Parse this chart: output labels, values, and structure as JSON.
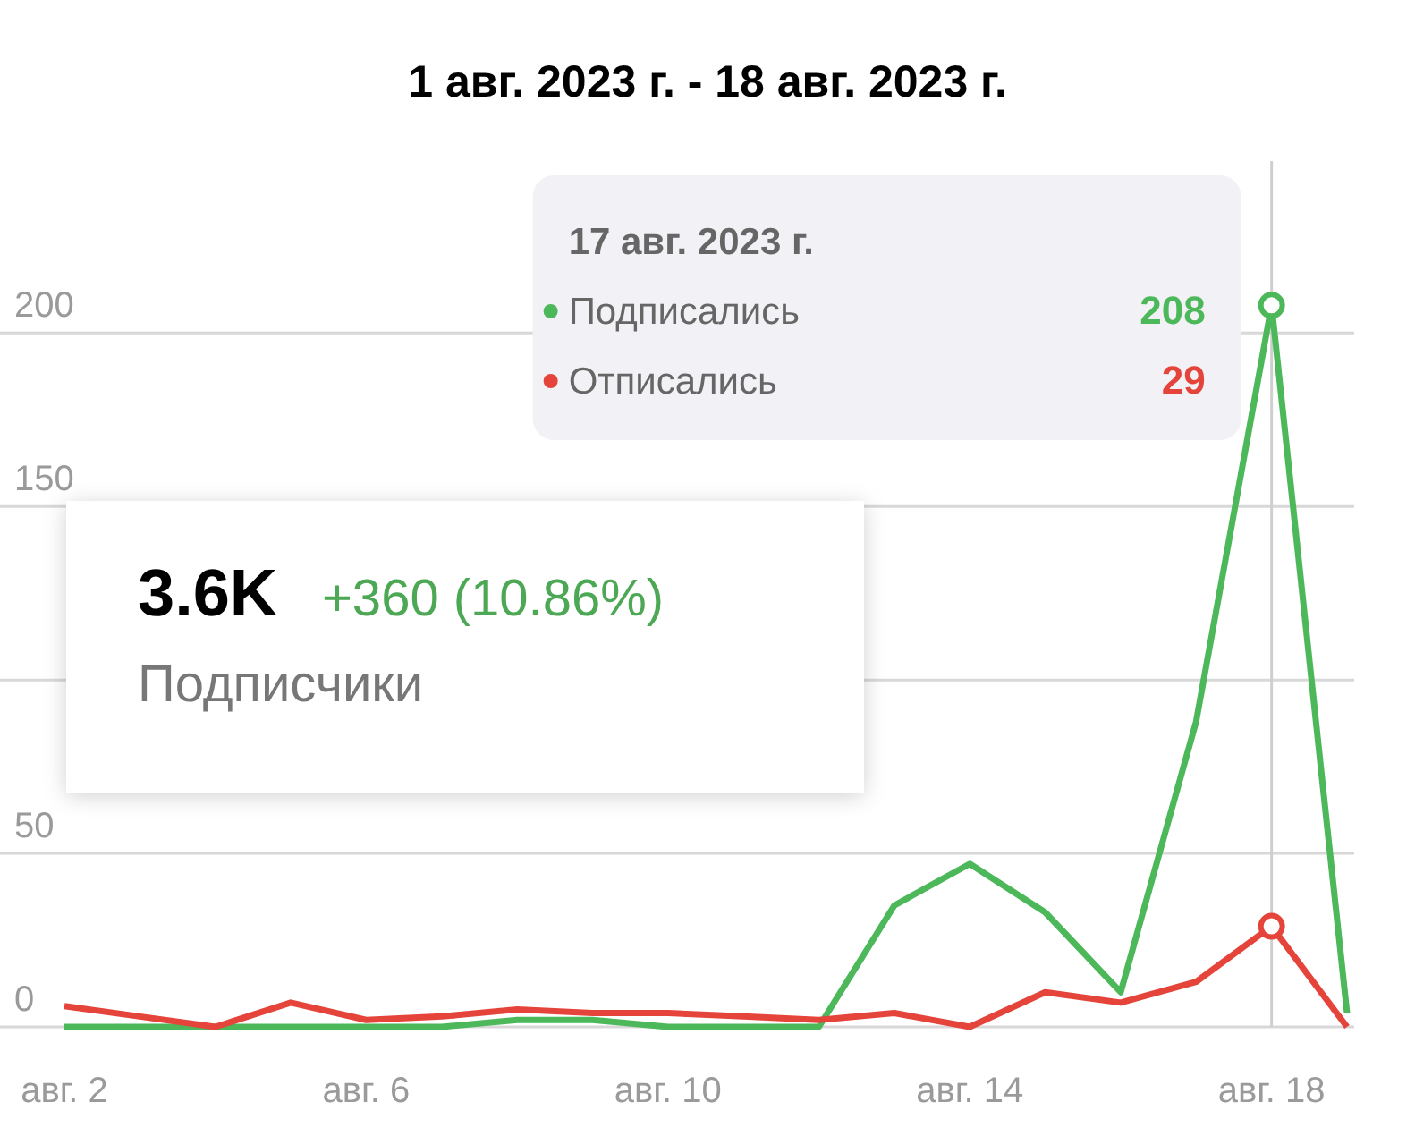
{
  "chart_data": {
    "type": "line",
    "title": "1 авг. 2023 г. - 18 авг. 2023 г.",
    "categories": [
      "авг. 2",
      null,
      null,
      null,
      "авг. 6",
      null,
      null,
      null,
      "авг. 10",
      null,
      null,
      null,
      "авг. 14",
      null,
      null,
      null,
      "авг. 18",
      null
    ],
    "series": [
      {
        "name": "Подписались",
        "color": "#4cb85a",
        "values": [
          0,
          0,
          0,
          0,
          0,
          0,
          2,
          2,
          0,
          0,
          0,
          35,
          47,
          33,
          10,
          88,
          208,
          4
        ]
      },
      {
        "name": "Отписались",
        "color": "#e5443b",
        "values": [
          6,
          3,
          0,
          7,
          2,
          3,
          5,
          4,
          4,
          3,
          2,
          4,
          0,
          10,
          7,
          13,
          29,
          0
        ]
      }
    ],
    "ylim": [
      0,
      296
    ],
    "yticks": [
      0,
      50,
      {
        "value": 100,
        "label": null
      },
      150,
      200
    ],
    "grid": "y",
    "legend": "top",
    "annotations": [
      "17 авг. 2023 г.",
      "208",
      "29",
      "3.6K",
      "+360 (10.86%)",
      "Подписчики"
    ]
  }
}
